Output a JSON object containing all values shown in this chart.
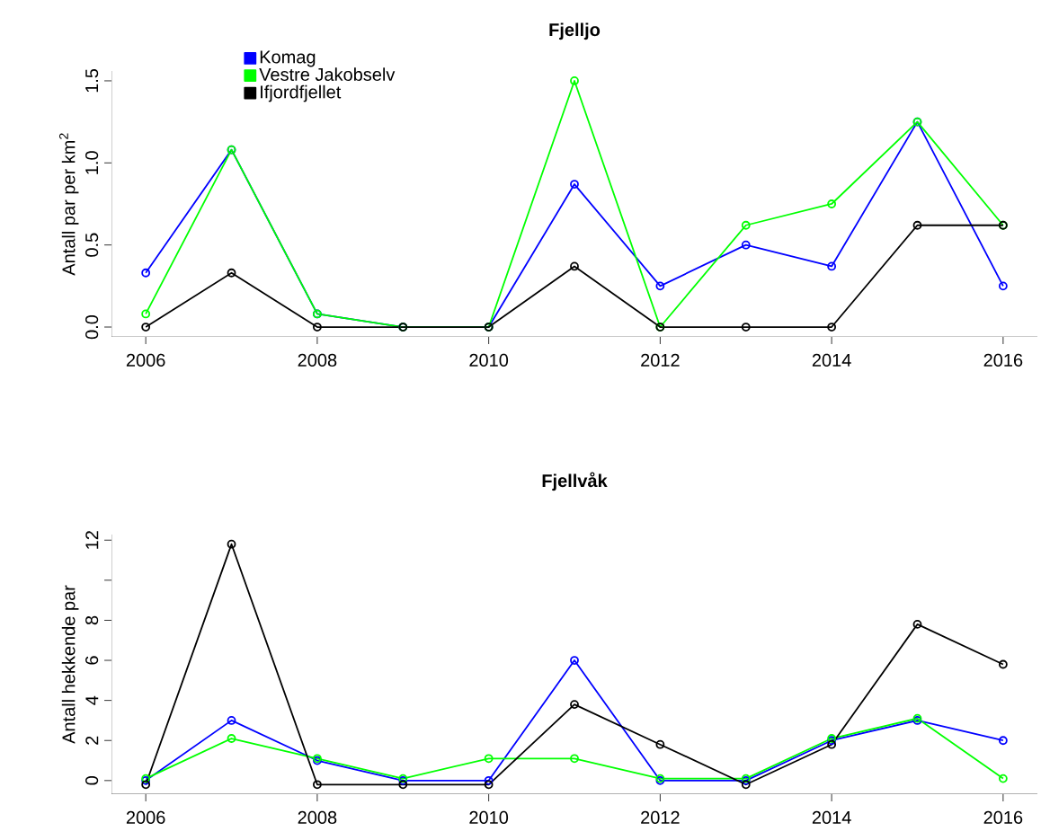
{
  "chart_data": [
    {
      "type": "line",
      "title": "Fjelljo",
      "ylabel": "Antall par per km$^{2}$",
      "x": [
        2006,
        2007,
        2008,
        2009,
        2010,
        2011,
        2012,
        2013,
        2014,
        2015,
        2016
      ],
      "series": [
        {
          "name": "Komag",
          "color": "#0000ff",
          "values": [
            0.33,
            1.08,
            0.08,
            0,
            0,
            0.87,
            0.25,
            0.5,
            0.37,
            1.25,
            0.25
          ]
        },
        {
          "name": "Vestre Jakobselv",
          "color": "#00ff00",
          "values": [
            0.08,
            1.08,
            0.08,
            0,
            0,
            1.5,
            0,
            0.62,
            0.75,
            1.25,
            0.62
          ]
        },
        {
          "name": "Ifjordfjellet",
          "color": "#000000",
          "values": [
            0,
            0.33,
            0,
            0,
            0,
            0.37,
            0,
            0,
            0,
            0.62,
            0.62
          ]
        }
      ],
      "xlim": [
        2005.6,
        2016.4
      ],
      "ylim": [
        -0.06,
        1.56
      ],
      "xticks": [
        2006,
        2008,
        2010,
        2012,
        2014,
        2016
      ],
      "yticks": [
        {
          "value": 0,
          "label": "0.0"
        },
        {
          "value": 0.5,
          "label": "0.5"
        },
        {
          "value": 1,
          "label": "1.0"
        },
        {
          "value": 1.5,
          "label": "1.5"
        }
      ],
      "legend": "top left",
      "marker": "circle",
      "line_style": "solid"
    },
    {
      "type": "line",
      "title": "Fjellvåk",
      "ylabel": "Antall hekkende par",
      "x": [
        2006,
        2007,
        2008,
        2009,
        2010,
        2011,
        2012,
        2013,
        2014,
        2015,
        2016
      ],
      "series": [
        {
          "color": "#0000ff",
          "values": [
            0,
            3,
            1,
            0,
            0,
            6,
            0,
            0,
            2,
            3,
            2
          ]
        },
        {
          "color": "#00ff00",
          "values": [
            0.1,
            2.1,
            1.1,
            0.1,
            1.1,
            1.1,
            0.1,
            0.1,
            2.1,
            3.1,
            0.1
          ]
        },
        {
          "color": "#000000",
          "values": [
            -0.2,
            11.8,
            -0.2,
            -0.2,
            -0.2,
            3.8,
            1.8,
            -0.2,
            1.8,
            7.8,
            5.8
          ]
        }
      ],
      "xlim": [
        2005.6,
        2016.4
      ],
      "ylim": [
        -0.68,
        12.28
      ],
      "xticks": [
        2006,
        2008,
        2010,
        2012,
        2014,
        2016
      ],
      "yticks": [
        0,
        2,
        4,
        6,
        8,
        {
          "value": 10,
          "label": null
        },
        12
      ],
      "marker": "circle",
      "line_style": "solid"
    }
  ]
}
